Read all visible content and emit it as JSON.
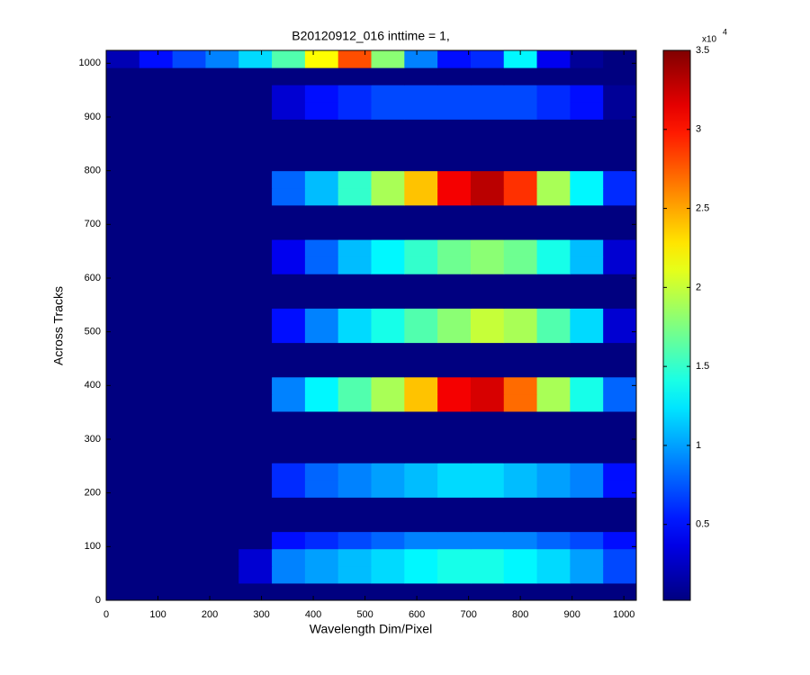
{
  "chart_data": {
    "type": "heatmap",
    "title": "B20120912_016 inttime = 1,",
    "xlabel": "Wavelength Dim/Pixel",
    "ylabel": "Across Tracks",
    "x": [
      0,
      64,
      128,
      192,
      256,
      320,
      384,
      448,
      512,
      576,
      640,
      704,
      768,
      832,
      896,
      960,
      1024
    ],
    "y": [
      0,
      32,
      64,
      96,
      128,
      160,
      192,
      224,
      256,
      288,
      320,
      352,
      384,
      416,
      448,
      480,
      512,
      544,
      576,
      608,
      640,
      672,
      704,
      736,
      768,
      800,
      832,
      864,
      896,
      928,
      960,
      992,
      1024
    ],
    "values": [
      [
        0.02,
        0.02,
        0.02,
        0.02,
        0.02,
        0.02,
        0.02,
        0.02,
        0.02,
        0.02,
        0.02,
        0.02,
        0.02,
        0.02,
        0.02,
        0.02
      ],
      [
        0.02,
        0.02,
        0.02,
        0.02,
        0.3,
        0.9,
        1.0,
        1.1,
        1.2,
        1.3,
        1.4,
        1.4,
        1.3,
        1.2,
        1.0,
        0.7
      ],
      [
        0.02,
        0.02,
        0.02,
        0.02,
        0.3,
        0.9,
        1.0,
        1.1,
        1.2,
        1.3,
        1.4,
        1.4,
        1.3,
        1.2,
        1.0,
        0.7
      ],
      [
        0.02,
        0.02,
        0.02,
        0.02,
        0.02,
        0.5,
        0.6,
        0.7,
        0.8,
        0.9,
        0.9,
        0.9,
        0.9,
        0.8,
        0.7,
        0.5
      ],
      [
        0.02,
        0.02,
        0.02,
        0.02,
        0.02,
        0.02,
        0.02,
        0.02,
        0.02,
        0.02,
        0.02,
        0.02,
        0.02,
        0.02,
        0.02,
        0.02
      ],
      [
        0.02,
        0.02,
        0.02,
        0.02,
        0.02,
        0.02,
        0.02,
        0.02,
        0.02,
        0.02,
        0.02,
        0.02,
        0.02,
        0.02,
        0.02,
        0.02
      ],
      [
        0.02,
        0.02,
        0.02,
        0.02,
        0.02,
        0.6,
        0.8,
        0.9,
        1.0,
        1.1,
        1.2,
        1.2,
        1.1,
        1.0,
        0.9,
        0.5
      ],
      [
        0.02,
        0.02,
        0.02,
        0.02,
        0.02,
        0.6,
        0.8,
        0.9,
        1.0,
        1.1,
        1.2,
        1.2,
        1.1,
        1.0,
        0.9,
        0.5
      ],
      [
        0.02,
        0.02,
        0.02,
        0.02,
        0.02,
        0.02,
        0.02,
        0.02,
        0.02,
        0.02,
        0.02,
        0.02,
        0.02,
        0.02,
        0.02,
        0.02
      ],
      [
        0.02,
        0.02,
        0.02,
        0.02,
        0.02,
        0.02,
        0.02,
        0.02,
        0.02,
        0.02,
        0.02,
        0.02,
        0.02,
        0.02,
        0.02,
        0.02
      ],
      [
        0.02,
        0.02,
        0.02,
        0.02,
        0.02,
        0.02,
        0.02,
        0.02,
        0.02,
        0.02,
        0.02,
        0.02,
        0.02,
        0.02,
        0.02,
        0.02
      ],
      [
        0.02,
        0.02,
        0.02,
        0.02,
        0.02,
        0.9,
        1.3,
        1.6,
        1.9,
        2.4,
        3.1,
        3.2,
        2.7,
        1.9,
        1.4,
        0.8
      ],
      [
        0.02,
        0.02,
        0.02,
        0.02,
        0.02,
        0.9,
        1.3,
        1.6,
        1.9,
        2.4,
        3.1,
        3.2,
        2.7,
        1.9,
        1.4,
        0.8
      ],
      [
        0.02,
        0.02,
        0.02,
        0.02,
        0.02,
        0.02,
        0.02,
        0.02,
        0.02,
        0.02,
        0.02,
        0.02,
        0.02,
        0.02,
        0.02,
        0.02
      ],
      [
        0.02,
        0.02,
        0.02,
        0.02,
        0.02,
        0.02,
        0.02,
        0.02,
        0.02,
        0.02,
        0.02,
        0.02,
        0.02,
        0.02,
        0.02,
        0.02
      ],
      [
        0.02,
        0.02,
        0.02,
        0.02,
        0.02,
        0.5,
        0.9,
        1.2,
        1.4,
        1.6,
        1.8,
        2.0,
        1.9,
        1.6,
        1.2,
        0.3
      ],
      [
        0.02,
        0.02,
        0.02,
        0.02,
        0.02,
        0.5,
        0.9,
        1.2,
        1.4,
        1.6,
        1.8,
        2.0,
        1.9,
        1.6,
        1.2,
        0.3
      ],
      [
        0.02,
        0.02,
        0.02,
        0.02,
        0.02,
        0.02,
        0.02,
        0.02,
        0.02,
        0.02,
        0.02,
        0.02,
        0.02,
        0.02,
        0.02,
        0.02
      ],
      [
        0.02,
        0.02,
        0.02,
        0.02,
        0.02,
        0.02,
        0.02,
        0.02,
        0.02,
        0.02,
        0.02,
        0.02,
        0.02,
        0.02,
        0.02,
        0.02
      ],
      [
        0.02,
        0.02,
        0.02,
        0.02,
        0.02,
        0.4,
        0.8,
        1.1,
        1.3,
        1.5,
        1.7,
        1.8,
        1.7,
        1.4,
        1.1,
        0.3
      ],
      [
        0.02,
        0.02,
        0.02,
        0.02,
        0.02,
        0.4,
        0.8,
        1.1,
        1.3,
        1.5,
        1.7,
        1.8,
        1.7,
        1.4,
        1.1,
        0.3
      ],
      [
        0.02,
        0.02,
        0.02,
        0.02,
        0.02,
        0.02,
        0.02,
        0.02,
        0.02,
        0.02,
        0.02,
        0.02,
        0.02,
        0.02,
        0.02,
        0.02
      ],
      [
        0.02,
        0.02,
        0.02,
        0.02,
        0.02,
        0.02,
        0.02,
        0.02,
        0.02,
        0.02,
        0.02,
        0.02,
        0.02,
        0.02,
        0.02,
        0.02
      ],
      [
        0.02,
        0.02,
        0.02,
        0.02,
        0.02,
        0.8,
        1.1,
        1.5,
        1.9,
        2.4,
        3.1,
        3.3,
        2.9,
        1.9,
        1.3,
        0.6
      ],
      [
        0.02,
        0.02,
        0.02,
        0.02,
        0.02,
        0.8,
        1.1,
        1.5,
        1.9,
        2.4,
        3.1,
        3.3,
        2.9,
        1.9,
        1.3,
        0.6
      ],
      [
        0.02,
        0.02,
        0.02,
        0.02,
        0.02,
        0.02,
        0.02,
        0.02,
        0.02,
        0.02,
        0.02,
        0.02,
        0.02,
        0.02,
        0.02,
        0.02
      ],
      [
        0.02,
        0.02,
        0.02,
        0.02,
        0.02,
        0.02,
        0.02,
        0.02,
        0.02,
        0.02,
        0.02,
        0.02,
        0.02,
        0.02,
        0.02,
        0.02
      ],
      [
        0.02,
        0.02,
        0.02,
        0.02,
        0.02,
        0.02,
        0.02,
        0.02,
        0.02,
        0.02,
        0.02,
        0.02,
        0.02,
        0.02,
        0.02,
        0.02
      ],
      [
        0.02,
        0.02,
        0.02,
        0.02,
        0.02,
        0.3,
        0.5,
        0.6,
        0.7,
        0.7,
        0.7,
        0.7,
        0.7,
        0.6,
        0.5,
        0.1
      ],
      [
        0.02,
        0.02,
        0.02,
        0.02,
        0.02,
        0.3,
        0.5,
        0.6,
        0.7,
        0.7,
        0.7,
        0.7,
        0.7,
        0.6,
        0.5,
        0.1
      ],
      [
        0.02,
        0.02,
        0.02,
        0.02,
        0.02,
        0.02,
        0.02,
        0.02,
        0.02,
        0.02,
        0.02,
        0.02,
        0.02,
        0.02,
        0.02,
        0.02
      ],
      [
        0.2,
        0.5,
        0.7,
        0.9,
        1.2,
        1.6,
        2.2,
        2.8,
        1.8,
        0.9,
        0.5,
        0.6,
        1.3,
        0.4,
        0.1,
        0.02
      ]
    ],
    "xlim": [
      0,
      1024
    ],
    "ylim": [
      0,
      1024
    ],
    "xticks": [
      0,
      100,
      200,
      300,
      400,
      500,
      600,
      700,
      800,
      900,
      1000
    ],
    "yticks": [
      0,
      100,
      200,
      300,
      400,
      500,
      600,
      700,
      800,
      900,
      1000
    ],
    "colormap": "jet",
    "clim": [
      0.02,
      3.5
    ],
    "cticks": [
      0.5,
      1,
      1.5,
      2,
      2.5,
      3,
      3.5
    ],
    "colorbar_multiplier": "x10",
    "colorbar_exponent": "4"
  }
}
